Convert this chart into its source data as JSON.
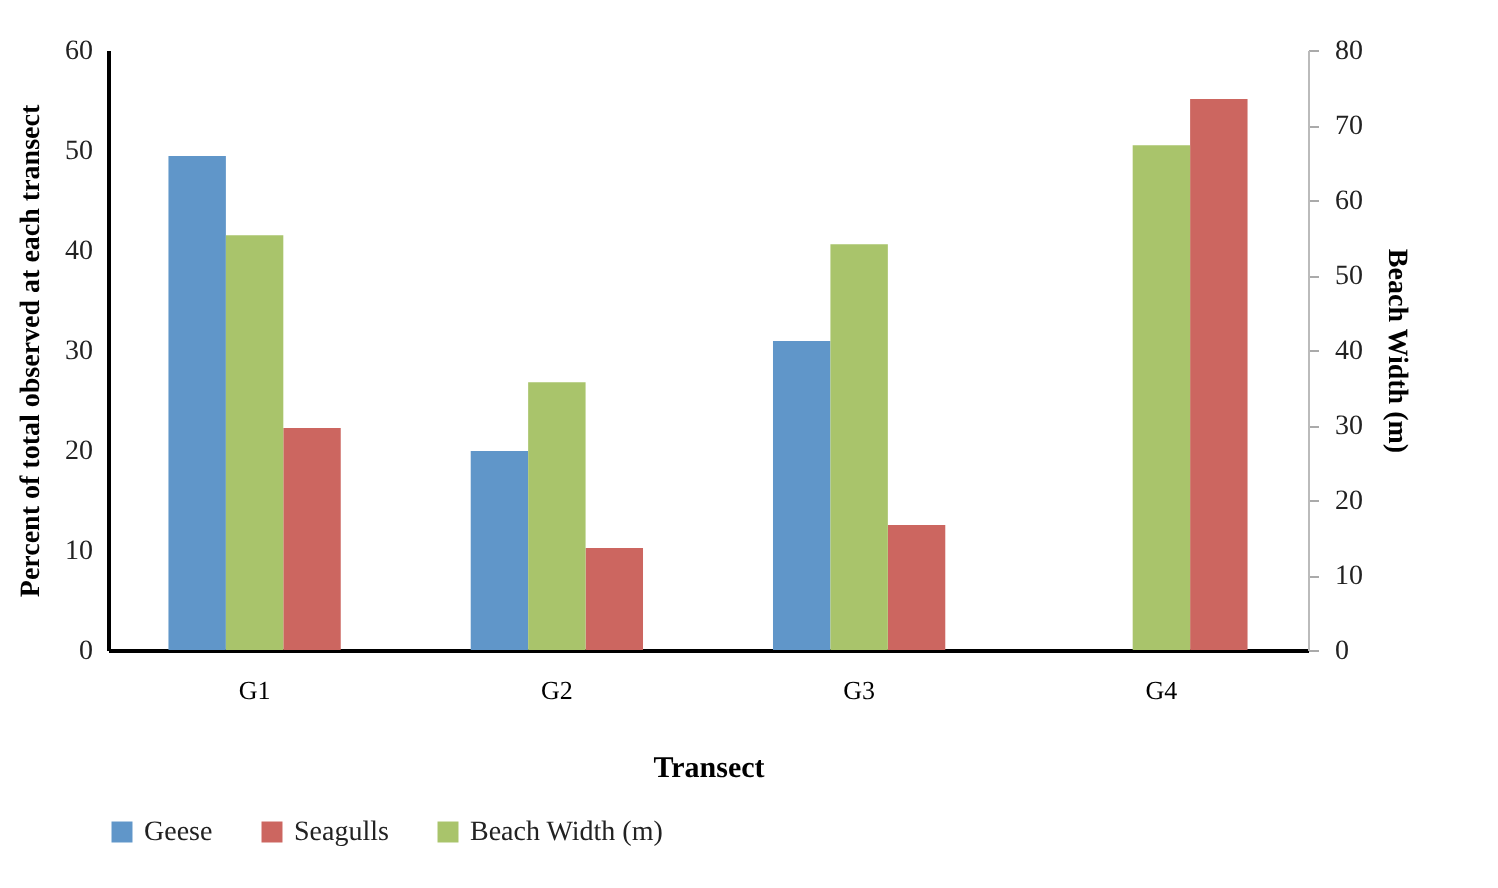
{
  "chart_data": {
    "type": "bar",
    "xlabel": "Transect",
    "ylabel": "Percent of total observed at each transect",
    "y2label": "Beach Width (m)",
    "categories": [
      "G1",
      "G2",
      "G3",
      "G4"
    ],
    "series": [
      {
        "name": "Geese",
        "color": "#6096c9",
        "values": [
          49.4,
          19.9,
          30.9,
          0
        ]
      },
      {
        "name": "Beach Width (m)",
        "color": "#a9c46b",
        "axis": "y2",
        "values": [
          55.3,
          35.7,
          54.1,
          67.3
        ]
      },
      {
        "name": "Seagulls",
        "color": "#cc6660",
        "values": [
          22.2,
          10.2,
          12.5,
          55.1
        ]
      }
    ],
    "ylim": [
      0,
      60
    ],
    "yticks": [
      0,
      10,
      20,
      30,
      40,
      50,
      60
    ],
    "y2lim": [
      0,
      80
    ],
    "y2ticks": [
      0,
      10,
      20,
      30,
      40,
      50,
      60,
      70,
      80
    ],
    "grid": false,
    "legend": "bottom"
  }
}
